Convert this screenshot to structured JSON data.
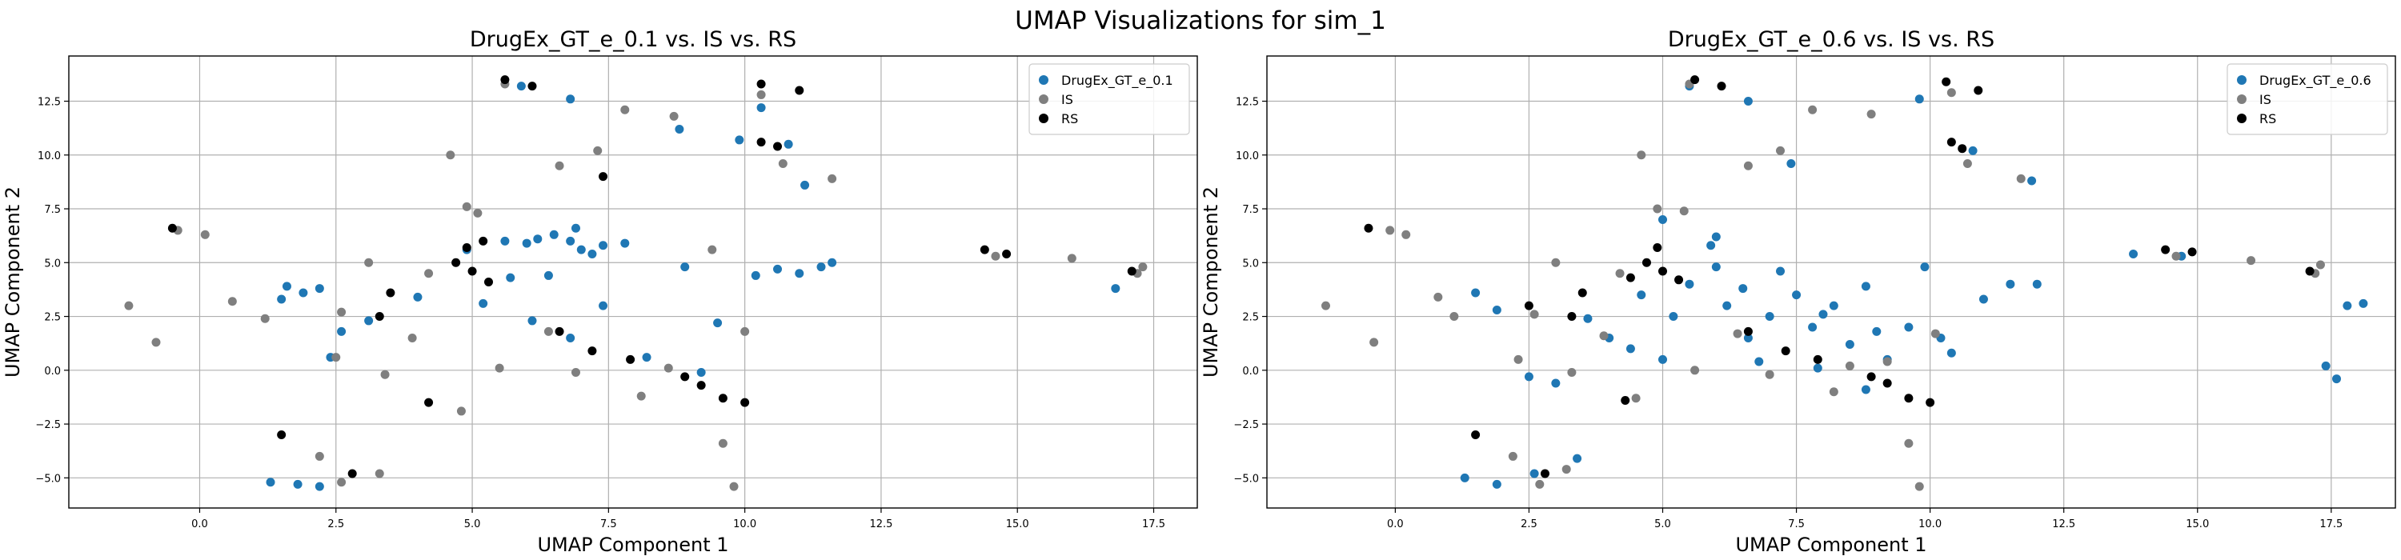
{
  "figure": {
    "title": "UMAP Visualizations for sim_1"
  },
  "colors": {
    "generated": "#1f77b4",
    "is": "#7f7f7f",
    "rs": "#000000",
    "grid": "#b0b0b0"
  },
  "chart_data": [
    {
      "type": "scatter",
      "title": "DrugEx_GT_e_0.1 vs. IS vs. RS",
      "xlabel": "UMAP Component 1",
      "ylabel": "UMAP Component 2",
      "xlim": [
        -2.4,
        18.3
      ],
      "ylim": [
        -6.4,
        14.6
      ],
      "xticks": [
        0.0,
        2.5,
        5.0,
        7.5,
        10.0,
        12.5,
        15.0,
        17.5
      ],
      "xtick_labels": [
        "0.0",
        "2.5",
        "5.0",
        "7.5",
        "10.0",
        "12.5",
        "15.0",
        "17.5"
      ],
      "yticks": [
        -5.0,
        -2.5,
        0.0,
        2.5,
        5.0,
        7.5,
        10.0,
        12.5
      ],
      "ytick_labels": [
        "−5.0",
        "−2.5",
        "0.0",
        "2.5",
        "5.0",
        "7.5",
        "10.0",
        "12.5"
      ],
      "grid": true,
      "legend": "top-right",
      "series": [
        {
          "name": "DrugEx_GT_e_0.1",
          "color": "#1f77b4",
          "points": [
            [
              6.5,
              6.3
            ],
            [
              6.8,
              6.0
            ],
            [
              7.0,
              5.6
            ],
            [
              6.2,
              6.1
            ],
            [
              7.4,
              5.8
            ],
            [
              6.0,
              5.9
            ],
            [
              7.8,
              5.9
            ],
            [
              5.6,
              6.0
            ],
            [
              6.9,
              6.6
            ],
            [
              7.2,
              5.4
            ],
            [
              11.0,
              4.5
            ],
            [
              10.6,
              4.7
            ],
            [
              11.4,
              4.8
            ],
            [
              10.2,
              4.4
            ],
            [
              11.6,
              5.0
            ],
            [
              1.6,
              3.9
            ],
            [
              1.9,
              3.6
            ],
            [
              2.2,
              3.8
            ],
            [
              1.5,
              3.3
            ],
            [
              10.8,
              10.5
            ],
            [
              9.9,
              10.7
            ],
            [
              10.3,
              12.2
            ],
            [
              5.9,
              13.2
            ],
            [
              6.8,
              12.6
            ],
            [
              8.8,
              11.2
            ],
            [
              1.3,
              -5.2
            ],
            [
              1.8,
              -5.3
            ],
            [
              2.2,
              -5.4
            ],
            [
              5.2,
              3.1
            ],
            [
              6.1,
              2.3
            ],
            [
              6.8,
              1.5
            ],
            [
              8.2,
              0.6
            ],
            [
              9.2,
              -0.1
            ],
            [
              4.0,
              3.4
            ],
            [
              6.4,
              4.4
            ],
            [
              4.9,
              5.6
            ],
            [
              2.6,
              1.8
            ],
            [
              9.5,
              2.2
            ],
            [
              11.1,
              8.6
            ],
            [
              7.4,
              3.0
            ],
            [
              5.7,
              4.3
            ],
            [
              8.9,
              4.8
            ],
            [
              16.8,
              3.8
            ],
            [
              2.4,
              0.6
            ],
            [
              3.1,
              2.3
            ]
          ]
        },
        {
          "name": "IS",
          "color": "#7f7f7f",
          "points": [
            [
              -1.3,
              3.0
            ],
            [
              -0.4,
              6.5
            ],
            [
              0.1,
              6.3
            ],
            [
              -0.8,
              1.3
            ],
            [
              0.6,
              3.2
            ],
            [
              1.2,
              2.4
            ],
            [
              2.5,
              0.6
            ],
            [
              3.4,
              -0.2
            ],
            [
              4.9,
              7.6
            ],
            [
              4.6,
              10.0
            ],
            [
              6.6,
              9.5
            ],
            [
              7.3,
              10.2
            ],
            [
              8.7,
              11.8
            ],
            [
              10.7,
              9.6
            ],
            [
              11.6,
              8.9
            ],
            [
              9.4,
              5.6
            ],
            [
              9.6,
              -3.4
            ],
            [
              9.8,
              -5.4
            ],
            [
              14.6,
              5.3
            ],
            [
              16.0,
              5.2
            ],
            [
              17.2,
              4.5
            ],
            [
              17.3,
              4.8
            ],
            [
              2.2,
              -4.0
            ],
            [
              2.6,
              -5.2
            ],
            [
              3.3,
              -4.8
            ],
            [
              4.2,
              4.5
            ],
            [
              5.5,
              0.1
            ],
            [
              6.9,
              -0.1
            ],
            [
              8.1,
              -1.2
            ],
            [
              3.9,
              1.5
            ],
            [
              5.6,
              13.3
            ],
            [
              10.3,
              12.8
            ],
            [
              7.8,
              12.1
            ],
            [
              3.1,
              5.0
            ],
            [
              8.6,
              0.1
            ],
            [
              10.0,
              1.8
            ],
            [
              6.4,
              1.8
            ],
            [
              4.8,
              -1.9
            ],
            [
              2.6,
              2.7
            ],
            [
              5.1,
              7.3
            ]
          ]
        },
        {
          "name": "RS",
          "color": "#000000",
          "points": [
            [
              -0.5,
              6.6
            ],
            [
              1.5,
              -3.0
            ],
            [
              2.8,
              -4.8
            ],
            [
              4.2,
              -1.5
            ],
            [
              4.7,
              5.0
            ],
            [
              5.0,
              4.6
            ],
            [
              5.3,
              4.1
            ],
            [
              4.9,
              5.7
            ],
            [
              5.2,
              6.0
            ],
            [
              3.5,
              3.6
            ],
            [
              3.3,
              2.5
            ],
            [
              6.6,
              1.8
            ],
            [
              7.9,
              0.5
            ],
            [
              8.9,
              -0.3
            ],
            [
              9.2,
              -0.7
            ],
            [
              9.6,
              -1.3
            ],
            [
              10.0,
              -1.5
            ],
            [
              10.3,
              10.6
            ],
            [
              10.6,
              10.4
            ],
            [
              11.0,
              13.0
            ],
            [
              10.3,
              13.3
            ],
            [
              5.6,
              13.5
            ],
            [
              6.1,
              13.2
            ],
            [
              7.4,
              9.0
            ],
            [
              14.4,
              5.6
            ],
            [
              14.8,
              5.4
            ],
            [
              17.1,
              4.6
            ],
            [
              7.2,
              0.9
            ]
          ]
        }
      ]
    },
    {
      "type": "scatter",
      "title": "DrugEx_GT_e_0.6 vs. IS vs. RS",
      "xlabel": "UMAP Component 1",
      "ylabel": "UMAP Component 2",
      "xlim": [
        -2.4,
        18.7
      ],
      "ylim": [
        -6.4,
        14.6
      ],
      "xticks": [
        0.0,
        2.5,
        5.0,
        7.5,
        10.0,
        12.5,
        15.0,
        17.5
      ],
      "xtick_labels": [
        "0.0",
        "2.5",
        "5.0",
        "7.5",
        "10.0",
        "12.5",
        "15.0",
        "17.5"
      ],
      "yticks": [
        -5.0,
        -2.5,
        0.0,
        2.5,
        5.0,
        7.5,
        10.0,
        12.5
      ],
      "ytick_labels": [
        "−5.0",
        "−2.5",
        "0.0",
        "2.5",
        "5.0",
        "7.5",
        "10.0",
        "12.5"
      ],
      "grid": true,
      "legend": "top-right",
      "series": [
        {
          "name": "DrugEx_GT_e_0.6",
          "color": "#1f77b4",
          "points": [
            [
              5.5,
              4.0
            ],
            [
              6.2,
              3.0
            ],
            [
              7.0,
              2.5
            ],
            [
              7.8,
              2.0
            ],
            [
              8.5,
              1.2
            ],
            [
              9.2,
              0.5
            ],
            [
              6.6,
              1.5
            ],
            [
              5.2,
              2.5
            ],
            [
              4.6,
              3.5
            ],
            [
              7.5,
              3.5
            ],
            [
              8.2,
              3.0
            ],
            [
              9.6,
              2.0
            ],
            [
              6.0,
              4.8
            ],
            [
              4.4,
              1.0
            ],
            [
              3.6,
              2.4
            ],
            [
              6.8,
              0.4
            ],
            [
              10.2,
              1.5
            ],
            [
              11.0,
              3.3
            ],
            [
              11.5,
              4.0
            ],
            [
              8.8,
              3.9
            ],
            [
              9.9,
              4.8
            ],
            [
              5.9,
              5.8
            ],
            [
              6.5,
              3.8
            ],
            [
              7.2,
              4.6
            ],
            [
              8.0,
              2.6
            ],
            [
              9.0,
              1.8
            ],
            [
              10.4,
              0.8
            ],
            [
              5.0,
              0.5
            ],
            [
              4.0,
              1.5
            ],
            [
              3.0,
              -0.6
            ],
            [
              2.5,
              -0.3
            ],
            [
              1.5,
              3.6
            ],
            [
              1.9,
              2.8
            ],
            [
              1.3,
              -5.0
            ],
            [
              1.9,
              -5.3
            ],
            [
              2.6,
              -4.8
            ],
            [
              3.4,
              -4.1
            ],
            [
              11.9,
              8.8
            ],
            [
              10.8,
              10.2
            ],
            [
              9.8,
              12.6
            ],
            [
              5.5,
              13.2
            ],
            [
              6.6,
              12.5
            ],
            [
              7.4,
              9.6
            ],
            [
              17.8,
              3.0
            ],
            [
              18.1,
              3.1
            ],
            [
              17.4,
              0.2
            ],
            [
              17.6,
              -0.4
            ],
            [
              14.7,
              5.3
            ],
            [
              13.8,
              5.4
            ],
            [
              5.0,
              7.0
            ],
            [
              6.0,
              6.2
            ],
            [
              12.0,
              4.0
            ],
            [
              8.8,
              -0.9
            ],
            [
              7.9,
              0.1
            ]
          ]
        },
        {
          "name": "IS",
          "color": "#7f7f7f",
          "points": [
            [
              -1.3,
              3.0
            ],
            [
              -0.1,
              6.5
            ],
            [
              0.2,
              6.3
            ],
            [
              -0.4,
              1.3
            ],
            [
              0.8,
              3.4
            ],
            [
              1.1,
              2.5
            ],
            [
              2.3,
              0.5
            ],
            [
              3.3,
              -0.1
            ],
            [
              4.9,
              7.5
            ],
            [
              4.6,
              10.0
            ],
            [
              6.6,
              9.5
            ],
            [
              7.2,
              10.2
            ],
            [
              8.9,
              11.9
            ],
            [
              10.7,
              9.6
            ],
            [
              11.7,
              8.9
            ],
            [
              9.6,
              -3.4
            ],
            [
              9.8,
              -5.4
            ],
            [
              14.6,
              5.3
            ],
            [
              16.0,
              5.1
            ],
            [
              17.2,
              4.5
            ],
            [
              17.3,
              4.9
            ],
            [
              2.2,
              -4.0
            ],
            [
              2.7,
              -5.3
            ],
            [
              3.2,
              -4.6
            ],
            [
              4.2,
              4.5
            ],
            [
              5.6,
              0.0
            ],
            [
              7.0,
              -0.2
            ],
            [
              8.2,
              -1.0
            ],
            [
              3.9,
              1.6
            ],
            [
              5.5,
              13.3
            ],
            [
              10.4,
              12.9
            ],
            [
              7.8,
              12.1
            ],
            [
              3.0,
              5.0
            ],
            [
              8.5,
              0.2
            ],
            [
              10.1,
              1.7
            ],
            [
              6.4,
              1.7
            ],
            [
              4.5,
              -1.3
            ],
            [
              2.6,
              2.6
            ],
            [
              5.4,
              7.4
            ],
            [
              9.2,
              0.4
            ]
          ]
        },
        {
          "name": "RS",
          "color": "#000000",
          "points": [
            [
              -0.5,
              6.6
            ],
            [
              1.5,
              -3.0
            ],
            [
              2.8,
              -4.8
            ],
            [
              4.3,
              -1.4
            ],
            [
              4.7,
              5.0
            ],
            [
              5.0,
              4.6
            ],
            [
              5.3,
              4.2
            ],
            [
              4.9,
              5.7
            ],
            [
              4.4,
              4.3
            ],
            [
              3.5,
              3.6
            ],
            [
              3.3,
              2.5
            ],
            [
              6.6,
              1.8
            ],
            [
              7.9,
              0.5
            ],
            [
              8.9,
              -0.3
            ],
            [
              9.2,
              -0.6
            ],
            [
              9.6,
              -1.3
            ],
            [
              10.0,
              -1.5
            ],
            [
              10.4,
              10.6
            ],
            [
              10.6,
              10.3
            ],
            [
              10.9,
              13.0
            ],
            [
              10.3,
              13.4
            ],
            [
              5.6,
              13.5
            ],
            [
              6.1,
              13.2
            ],
            [
              7.3,
              0.9
            ],
            [
              14.4,
              5.6
            ],
            [
              14.9,
              5.5
            ],
            [
              17.1,
              4.6
            ],
            [
              2.5,
              3.0
            ]
          ]
        }
      ]
    }
  ]
}
